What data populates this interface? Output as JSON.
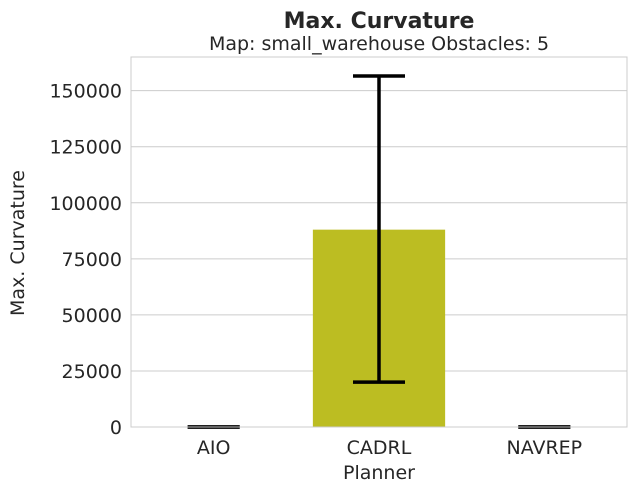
{
  "chart_data": {
    "type": "bar",
    "title": "Max. Curvature",
    "subtitle": "Map: small_warehouse Obstacles: 5",
    "xlabel": "Planner",
    "ylabel": "Max. Curvature",
    "categories": [
      "AIO",
      "CADRL",
      "NAVREP"
    ],
    "values": [
      0,
      88000,
      0
    ],
    "error_bars": [
      {
        "low": 0,
        "high": 0
      },
      {
        "low": 20000,
        "high": 156500
      },
      {
        "low": 0,
        "high": 0
      }
    ],
    "bar_colors": [
      "#3a6fb0",
      "#bcbd22",
      "#c44e52"
    ],
    "error_color": "#000000",
    "ylim": [
      0,
      165000
    ],
    "yticks": [
      0,
      25000,
      50000,
      75000,
      100000,
      125000,
      150000
    ],
    "ytick_labels": [
      "0",
      "25000",
      "50000",
      "75000",
      "100000",
      "125000",
      "150000"
    ],
    "grid": "horizontal",
    "background": "#ffffff",
    "grid_color": "#cccccc",
    "frame_color": "#cccccc"
  }
}
